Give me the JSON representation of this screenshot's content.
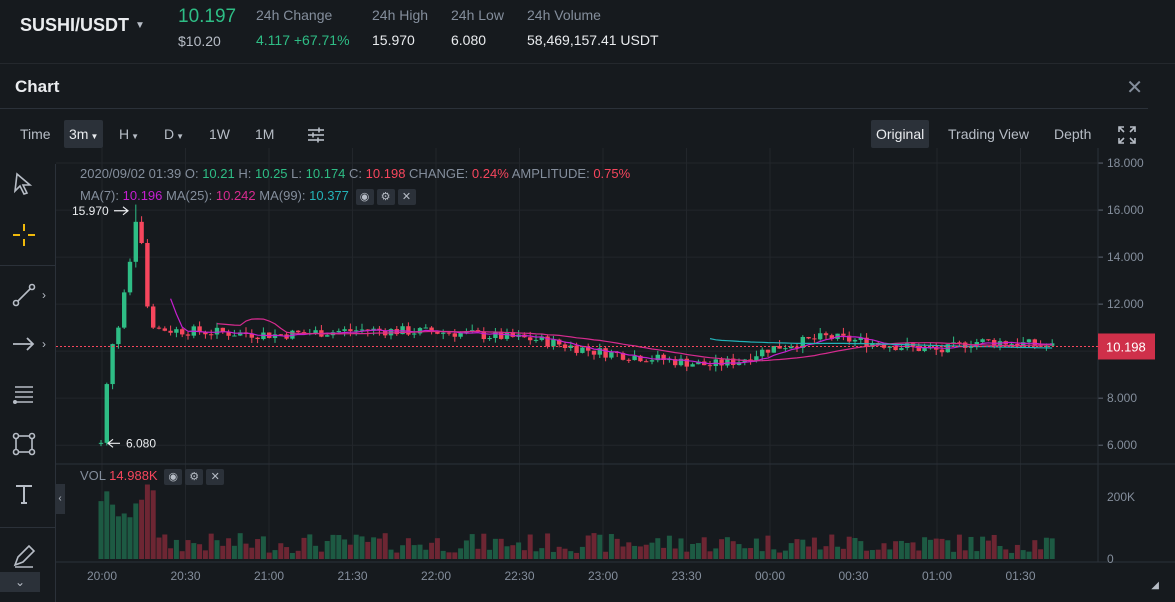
{
  "ticker": {
    "pair": "SUSHI/USDT",
    "last_price": "10.197",
    "last_price_usd": "$10.20",
    "change_label": "24h Change",
    "change_value": "4.117 +67.71%",
    "high_label": "24h High",
    "high_value": "15.970",
    "low_label": "24h Low",
    "low_value": "6.080",
    "volume_label": "24h Volume",
    "volume_value": "58,469,157.41 USDT"
  },
  "panel": {
    "title": "Chart",
    "close_icon": "close-icon"
  },
  "toolbar": {
    "time_label": "Time",
    "intervals": [
      "3m",
      "H",
      "D",
      "1W",
      "1M"
    ],
    "active_interval": "3m",
    "settings_icon": "sliders-icon",
    "views": [
      "Original",
      "Trading View",
      "Depth"
    ],
    "active_view": "Original",
    "fullscreen_icon": "fullscreen-icon"
  },
  "tools": [
    "cursor-icon",
    "crosshair-icon",
    "trend-line-icon",
    "arrow-icon",
    "fib-icon",
    "shape-icon",
    "text-icon",
    "brush-icon"
  ],
  "info": {
    "datetime": "2020/09/02 01:39",
    "o_label": "O:",
    "o": "10.21",
    "h_label": "H:",
    "h": "10.25",
    "l_label": "L:",
    "l": "10.174",
    "c_label": "C:",
    "c": "10.198",
    "change_label": "CHANGE:",
    "change": "0.24%",
    "amp_label": "AMPLITUDE:",
    "amp": "0.75%",
    "ma7_label": "MA(7):",
    "ma7": "10.196",
    "ma25_label": "MA(25):",
    "ma25": "10.242",
    "ma99_label": "MA(99):",
    "ma99": "10.377",
    "vol_label": "VOL",
    "vol": "14.988K"
  },
  "colors": {
    "up": "#2ebd85",
    "down": "#f6465d",
    "ma7": "#c71fd1",
    "ma25": "#d62b8f",
    "ma99": "#23b2b8"
  },
  "chart_data": {
    "type": "candlestick",
    "price_axis": {
      "ticks": [
        "18.000",
        "16.000",
        "14.000",
        "12.000",
        "10.000",
        "8.000",
        "6.000"
      ],
      "range": [
        5.2,
        18.3
      ]
    },
    "volume_axis": {
      "ticks": [
        "200K",
        "0"
      ]
    },
    "time_ticks": [
      "20:00",
      "20:30",
      "21:00",
      "21:30",
      "22:00",
      "22:30",
      "23:00",
      "23:30",
      "00:00",
      "00:30",
      "01:00",
      "01:30"
    ],
    "current_price": "10.198",
    "high_marker": "15.970",
    "low_marker": "6.080"
  }
}
